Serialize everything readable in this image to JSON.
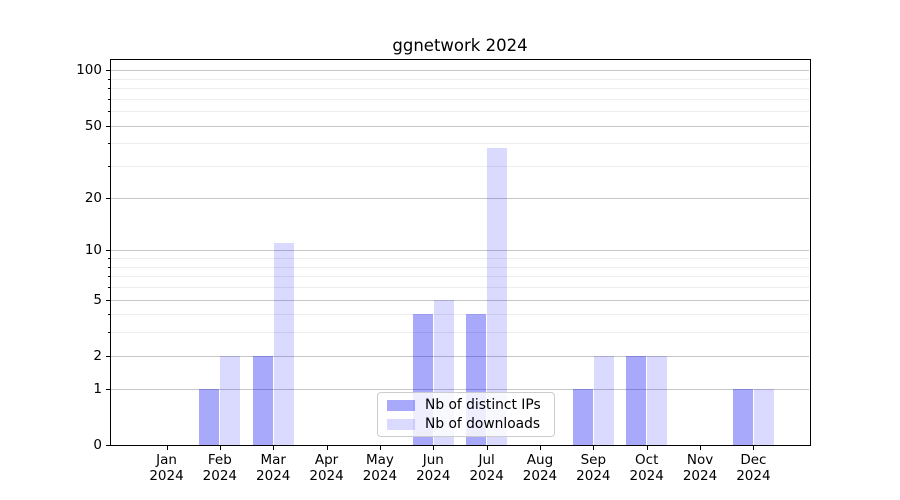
{
  "chart_data": {
    "type": "bar",
    "title": "ggnetwork 2024",
    "categories": [
      {
        "month": "Jan",
        "year": "2024"
      },
      {
        "month": "Feb",
        "year": "2024"
      },
      {
        "month": "Mar",
        "year": "2024"
      },
      {
        "month": "Apr",
        "year": "2024"
      },
      {
        "month": "May",
        "year": "2024"
      },
      {
        "month": "Jun",
        "year": "2024"
      },
      {
        "month": "Jul",
        "year": "2024"
      },
      {
        "month": "Aug",
        "year": "2024"
      },
      {
        "month": "Sep",
        "year": "2024"
      },
      {
        "month": "Oct",
        "year": "2024"
      },
      {
        "month": "Nov",
        "year": "2024"
      },
      {
        "month": "Dec",
        "year": "2024"
      }
    ],
    "series": [
      {
        "name": "Nb of distinct IPs",
        "color": "rgba(10,10,245,0.35)",
        "color_hex_on_white": "#a9a9fb",
        "values": [
          0,
          1,
          2,
          0,
          0,
          4,
          4,
          0,
          1,
          2,
          0,
          1
        ]
      },
      {
        "name": "Nb of downloads",
        "color": "rgba(10,10,245,0.15)",
        "color_hex_on_white": "#dbdbfb",
        "values": [
          0,
          2,
          11,
          0,
          0,
          5,
          38,
          0,
          2,
          2,
          0,
          1
        ]
      }
    ],
    "yscale": "log1p",
    "yticks_major": [
      0,
      1,
      2,
      5,
      10,
      20,
      50,
      100
    ],
    "yticks_minor": [
      3,
      4,
      6,
      7,
      8,
      9,
      30,
      40,
      60,
      70,
      80,
      90
    ],
    "ylim": [
      0,
      115
    ],
    "xlabel": "",
    "ylabel": "",
    "grid": true,
    "legend_position": "lower center",
    "colors": {
      "major_grid": "#c6c6c6",
      "minor_grid": "#ededed",
      "spine": "#000000",
      "text": "#000000",
      "background": "#ffffff"
    }
  }
}
